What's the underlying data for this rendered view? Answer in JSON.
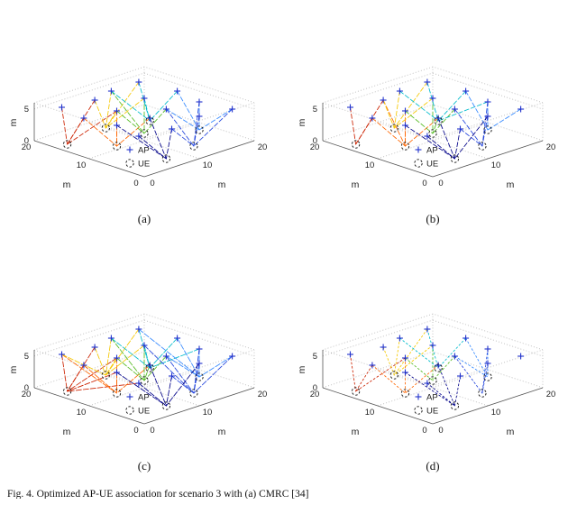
{
  "figure": {
    "caption": "Fig. 4.   Optimized AP-UE association for scenario 3 with (a) CMRC [34]"
  },
  "chart_data": {
    "type": "scatter",
    "plot_kind": "3d-association-lines",
    "axes": {
      "xlabel": "m",
      "ylabel": "m",
      "zlabel": "m",
      "x_ticks": [
        0,
        10,
        20
      ],
      "y_ticks": [
        0,
        10,
        20
      ],
      "z_ticks": [
        0,
        5
      ],
      "xlim": [
        0,
        20
      ],
      "ylim": [
        0,
        20
      ],
      "zlim": [
        0,
        6
      ],
      "grid": "dotted"
    },
    "legend": [
      {
        "label": "AP",
        "marker": "plus",
        "color": "#2233cc"
      },
      {
        "label": "UE",
        "marker": "dashed-circle",
        "color": "#111111"
      }
    ],
    "ap_height": 5,
    "ap_positions": [
      [
        2,
        3
      ],
      [
        7,
        2
      ],
      [
        13,
        3
      ],
      [
        18,
        2
      ],
      [
        3,
        8
      ],
      [
        8,
        7
      ],
      [
        12,
        8
      ],
      [
        17,
        7
      ],
      [
        2,
        13
      ],
      [
        7,
        12
      ],
      [
        13,
        13
      ],
      [
        18,
        12
      ],
      [
        3,
        18
      ],
      [
        8,
        17
      ],
      [
        12,
        18
      ],
      [
        17,
        18
      ]
    ],
    "ue_positions": [
      [
        2,
        16
      ],
      [
        6,
        11
      ],
      [
        10,
        17
      ],
      [
        12,
        12
      ],
      [
        16,
        15
      ],
      [
        18,
        8
      ],
      [
        13,
        4
      ],
      [
        7,
        3
      ]
    ],
    "ue_colors": [
      "#cc2200",
      "#ff6600",
      "#f5c800",
      "#55bb22",
      "#00bbcc",
      "#3388ff",
      "#2244dd",
      "#000088"
    ],
    "subplots": [
      {
        "label": "(a)",
        "dash": "5 2.5",
        "associations": [
          [
            13,
            9,
            14,
            10
          ],
          [
            10,
            9,
            6,
            5
          ],
          [
            14,
            15,
            10,
            11,
            16
          ],
          [
            11,
            10,
            7,
            15
          ],
          [
            16,
            12,
            11,
            15
          ],
          [
            8,
            12,
            4,
            7
          ],
          [
            3,
            7,
            2,
            4,
            8
          ],
          [
            2,
            6,
            1,
            5
          ]
        ]
      },
      {
        "label": "(b)",
        "dash": "5 2.5",
        "associations": [
          [
            13,
            9,
            14
          ],
          [
            10,
            5,
            6,
            9,
            14
          ],
          [
            14,
            15,
            16,
            11
          ],
          [
            11,
            7,
            10,
            6
          ],
          [
            16,
            12,
            15,
            8
          ],
          [
            8,
            12,
            4
          ],
          [
            3,
            7,
            8,
            2
          ],
          [
            2,
            1,
            6,
            5,
            3
          ]
        ]
      },
      {
        "label": "(c)",
        "dash": "6 2",
        "associations": [
          [
            13,
            9,
            14,
            10,
            5,
            1
          ],
          [
            10,
            9,
            6,
            5,
            13
          ],
          [
            14,
            15,
            10,
            11,
            16,
            13
          ],
          [
            11,
            10,
            7,
            15,
            6
          ],
          [
            16,
            12,
            11,
            15,
            8
          ],
          [
            8,
            12,
            4,
            7,
            16
          ],
          [
            3,
            7,
            2,
            4,
            8,
            11
          ],
          [
            2,
            6,
            1,
            5,
            3
          ]
        ]
      },
      {
        "label": "(d)",
        "dash": "2 2.5",
        "associations": [
          [
            13,
            9,
            10
          ],
          [
            10,
            6,
            9
          ],
          [
            14,
            15,
            11,
            16
          ],
          [
            11,
            7,
            10
          ],
          [
            16,
            12,
            15
          ],
          [
            8,
            12,
            7
          ],
          [
            3,
            7,
            8
          ],
          [
            2,
            6,
            5,
            1
          ]
        ]
      }
    ]
  }
}
